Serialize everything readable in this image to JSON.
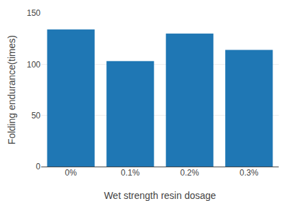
{
  "chart_data": {
    "type": "bar",
    "categories": [
      "0%",
      "0.1%",
      "0.2%",
      "0.3%"
    ],
    "values": [
      134,
      103,
      130,
      114
    ],
    "xlabel": "Wet strength resin dosage",
    "ylabel": "Folding endurance(times)",
    "ylim": [
      0,
      150
    ],
    "yticks": [
      0,
      50,
      100,
      150
    ],
    "grid": true
  }
}
